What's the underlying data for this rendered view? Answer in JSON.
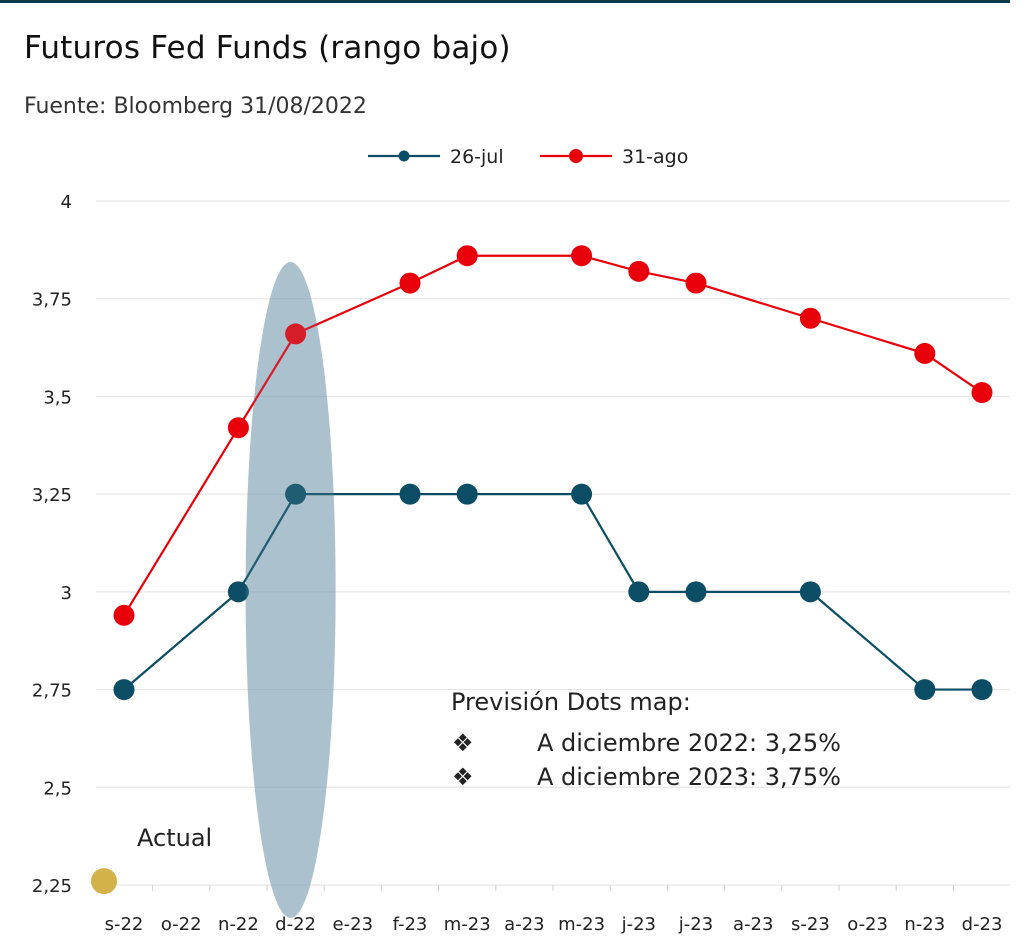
{
  "header": {
    "title": "Futuros Fed Funds (rango bajo)",
    "source": "Fuente: Bloomberg 31/08/2022"
  },
  "chart_data": {
    "type": "line",
    "title": "Futuros Fed Funds (rango bajo)",
    "categories": [
      "s-22",
      "o-22",
      "n-22",
      "d-22",
      "e-23",
      "f-23",
      "m-23",
      "a-23",
      "m-23",
      "j-23",
      "j-23",
      "a-23",
      "s-23",
      "o-23",
      "n-23",
      "d-23"
    ],
    "series": [
      {
        "name": "26-jul",
        "color": "#0b4d64",
        "values": [
          2.75,
          null,
          3.0,
          3.25,
          null,
          3.25,
          3.25,
          null,
          3.25,
          3.0,
          3.0,
          null,
          3.0,
          null,
          2.75,
          2.75
        ]
      },
      {
        "name": "31-ago",
        "color": "#e8000b",
        "values": [
          2.94,
          null,
          3.42,
          3.66,
          null,
          3.79,
          3.86,
          null,
          3.86,
          3.82,
          3.79,
          null,
          3.7,
          null,
          3.61,
          3.51
        ]
      }
    ],
    "actual": {
      "label": "Actual",
      "value": 2.26,
      "color": "#d4b24a"
    },
    "highlight_category": "d-22",
    "ylim": [
      2.25,
      4.0
    ],
    "yticks": [
      "2,25",
      "2,5",
      "2,75",
      "3",
      "3,25",
      "3,5",
      "3,75",
      "4"
    ],
    "legend_position": "top-center",
    "grid": true,
    "annotation": {
      "heading": "Previsión Dots map:",
      "bullet": "❖",
      "items": [
        "A diciembre 2022: 3,25%",
        "A diciembre 2023: 3,75%"
      ]
    }
  }
}
